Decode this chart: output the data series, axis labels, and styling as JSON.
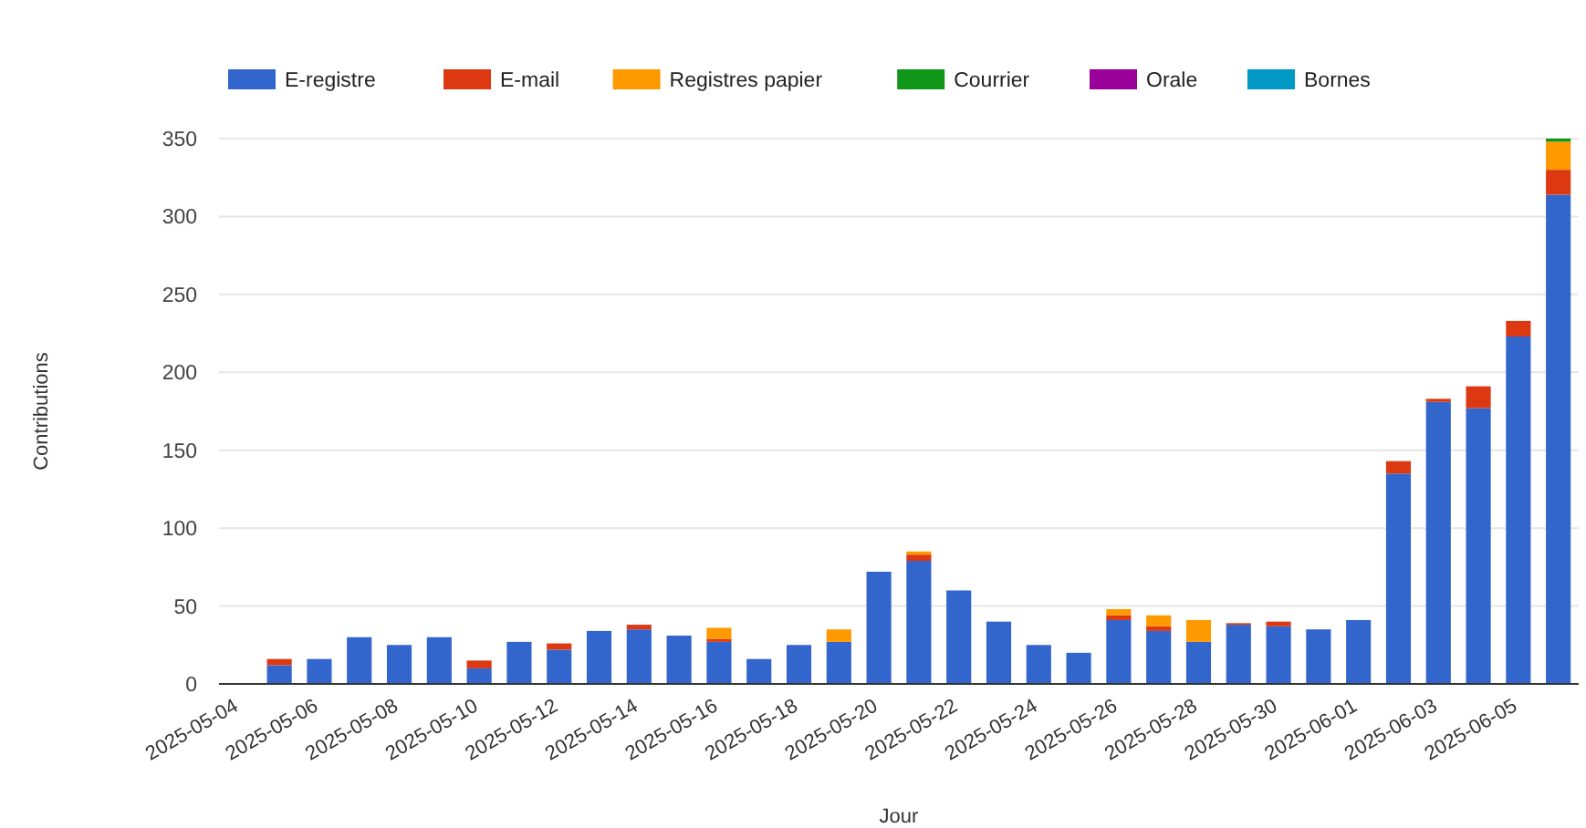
{
  "chart_data": {
    "type": "bar",
    "stacked": true,
    "xlabel": "Jour",
    "ylabel": "Contributions",
    "legend": "top",
    "grid": "y",
    "ylim": [
      0,
      350
    ],
    "yticks": [
      0,
      50,
      100,
      150,
      200,
      250,
      300,
      350
    ],
    "categories": [
      "2025-05-04",
      null,
      "2025-05-06",
      null,
      "2025-05-08",
      null,
      "2025-05-10",
      null,
      "2025-05-12",
      null,
      "2025-05-14",
      null,
      "2025-05-16",
      null,
      "2025-05-18",
      null,
      "2025-05-20",
      null,
      "2025-05-22",
      null,
      "2025-05-24",
      null,
      "2025-05-26",
      null,
      "2025-05-28",
      null,
      "2025-05-30",
      null,
      "2025-06-01",
      null,
      "2025-06-03",
      null,
      "2025-06-05",
      null
    ],
    "series": [
      {
        "name": "E-registre",
        "color": "#3366cc",
        "values": [
          0,
          12,
          16,
          30,
          25,
          30,
          10,
          27,
          22,
          34,
          35,
          31,
          27,
          16,
          25,
          27,
          72,
          79,
          60,
          40,
          25,
          20,
          41,
          34,
          27,
          38,
          37,
          35,
          41,
          135,
          181,
          177,
          223,
          314
        ]
      },
      {
        "name": "E-mail",
        "color": "#dc3912",
        "values": [
          0,
          4,
          0,
          0,
          0,
          0,
          5,
          0,
          4,
          0,
          3,
          0,
          2,
          0,
          0,
          0,
          0,
          4,
          0,
          0,
          0,
          0,
          3,
          3,
          0,
          1,
          3,
          0,
          0,
          8,
          2,
          14,
          10,
          16
        ]
      },
      {
        "name": "Registres papier",
        "color": "#ff9900",
        "values": [
          0,
          0,
          0,
          0,
          0,
          0,
          0,
          0,
          0,
          0,
          0,
          0,
          7,
          0,
          0,
          8,
          0,
          2,
          0,
          0,
          0,
          0,
          4,
          7,
          14,
          0,
          0,
          0,
          0,
          0,
          0,
          0,
          0,
          18
        ]
      },
      {
        "name": "Courrier",
        "color": "#109618",
        "values": [
          0,
          0,
          0,
          0,
          0,
          0,
          0,
          0,
          0,
          0,
          0,
          0,
          0,
          0,
          0,
          0,
          0,
          0,
          0,
          0,
          0,
          0,
          0,
          0,
          0,
          0,
          0,
          0,
          0,
          0,
          0,
          0,
          0,
          2
        ]
      },
      {
        "name": "Orale",
        "color": "#990099",
        "values": [
          0,
          0,
          0,
          0,
          0,
          0,
          0,
          0,
          0,
          0,
          0,
          0,
          0,
          0,
          0,
          0,
          0,
          0,
          0,
          0,
          0,
          0,
          0,
          0,
          0,
          0,
          0,
          0,
          0,
          0,
          0,
          0,
          0,
          0
        ]
      },
      {
        "name": "Bornes",
        "color": "#0099c6",
        "values": [
          0,
          0,
          0,
          0,
          0,
          0,
          0,
          0,
          0,
          0,
          0,
          0,
          0,
          0,
          0,
          0,
          0,
          0,
          0,
          0,
          0,
          0,
          0,
          0,
          0,
          0,
          0,
          0,
          0,
          0,
          0,
          0,
          0,
          0
        ]
      }
    ]
  }
}
